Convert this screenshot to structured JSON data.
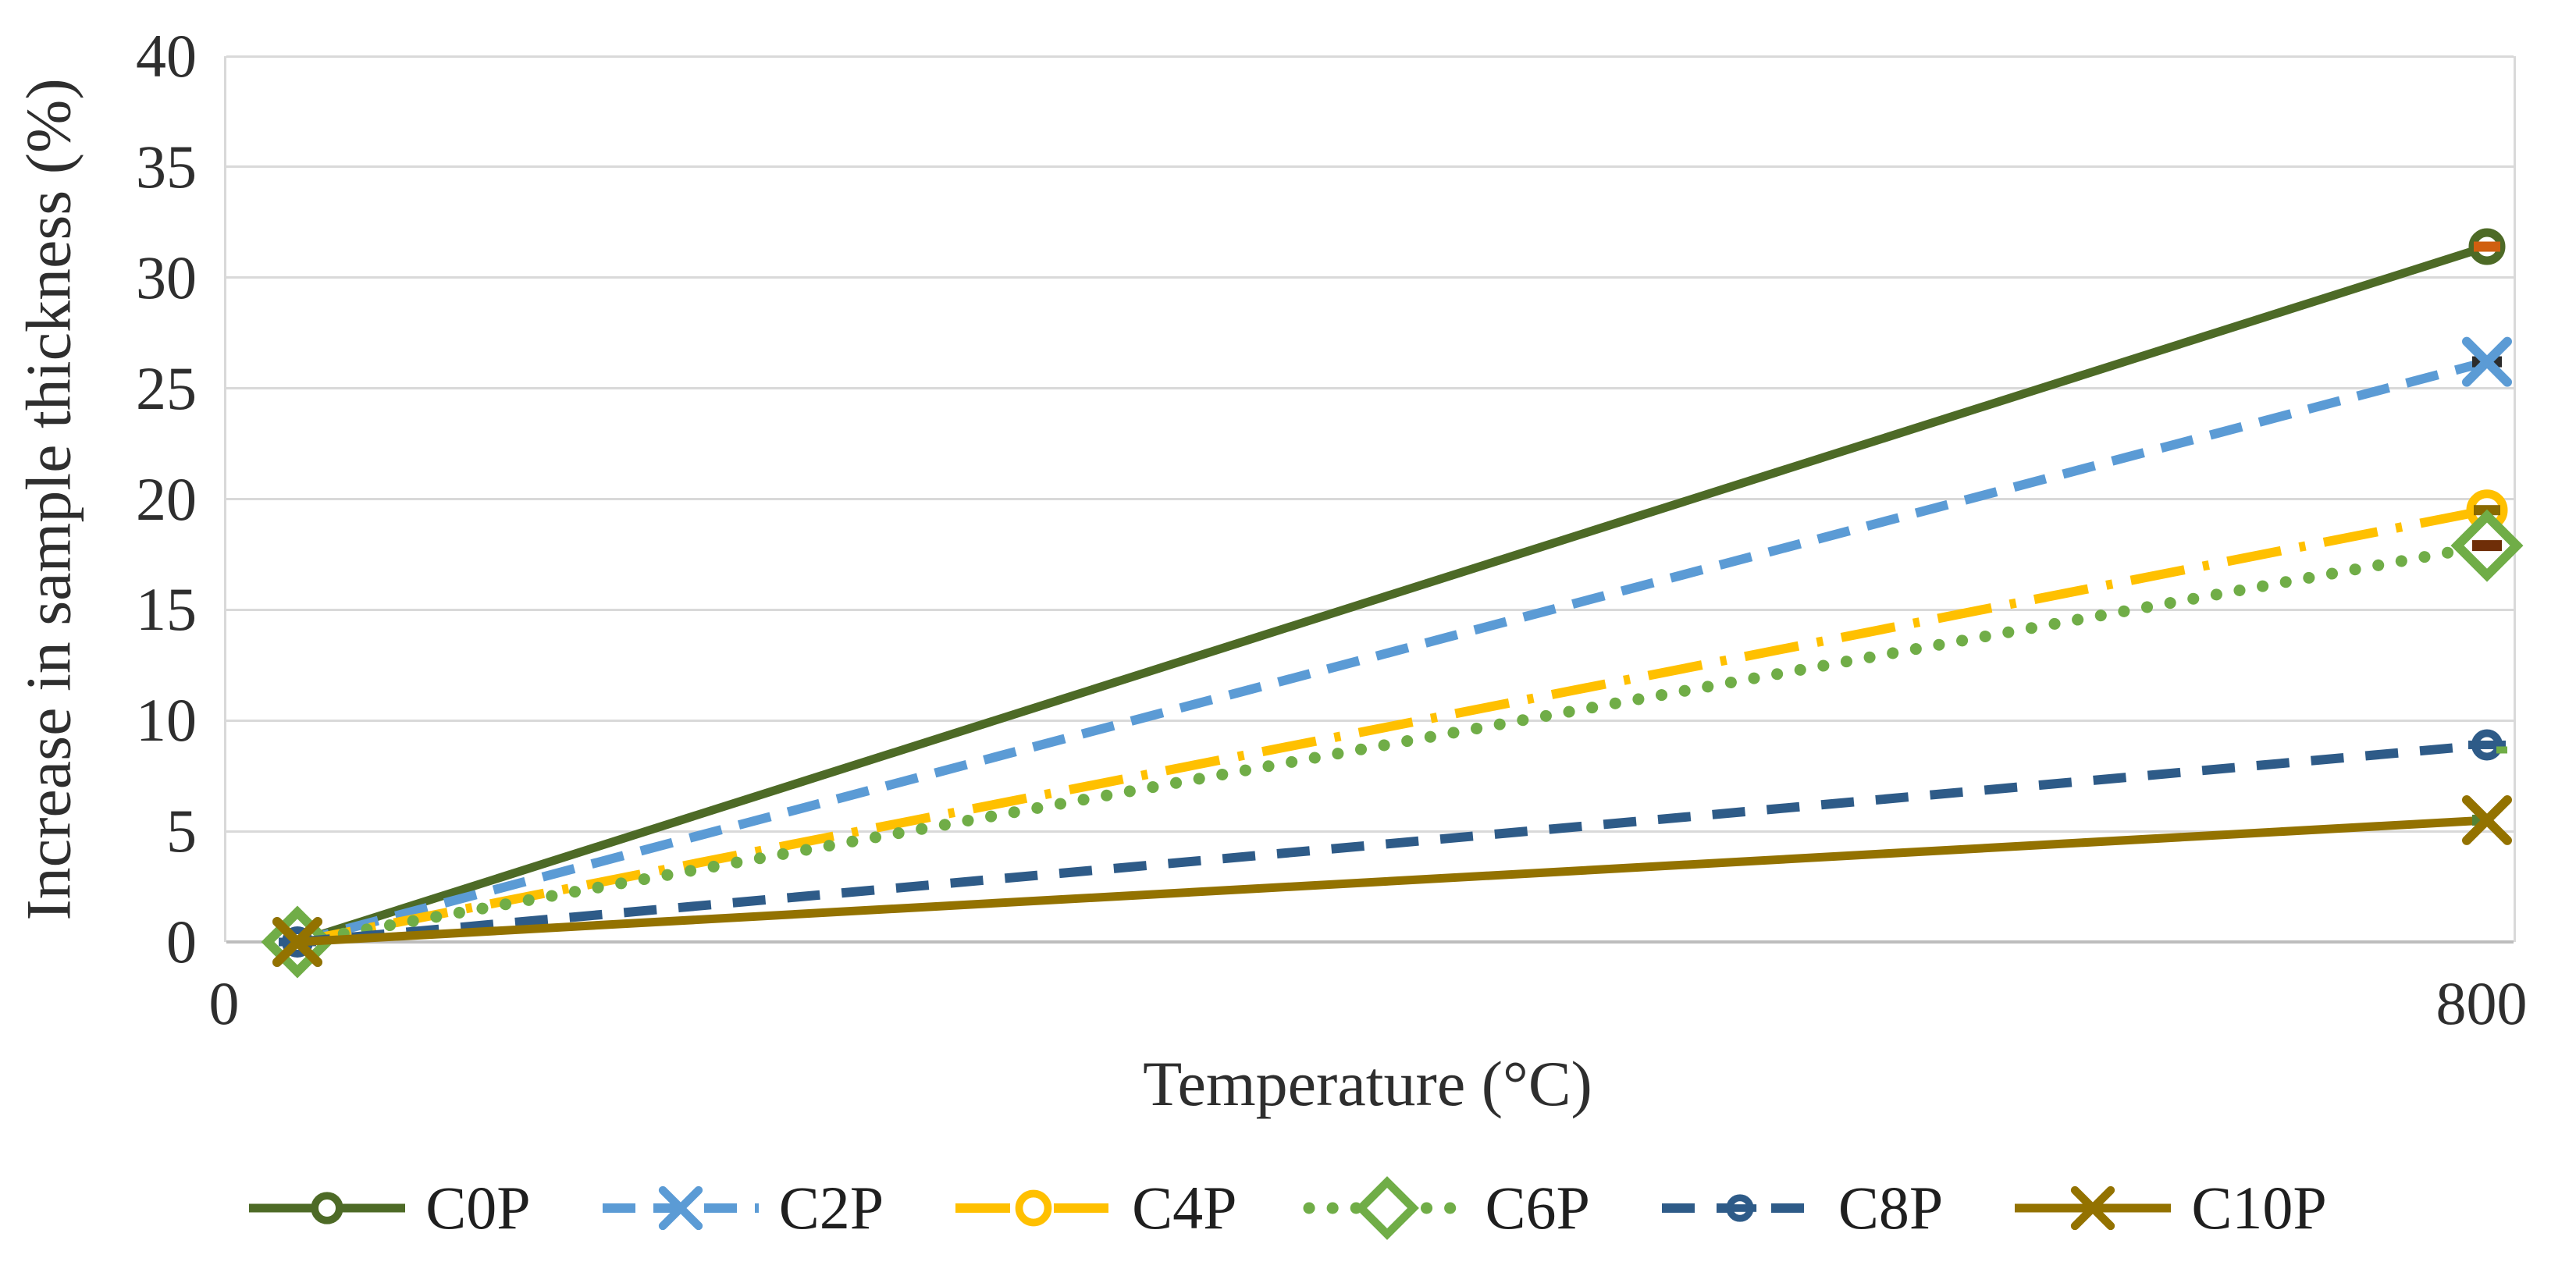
{
  "colors": {
    "gridline": "#d9d9d9",
    "axis_line": "#bdbdbd",
    "text": "#2e2e2e",
    "background": "#ffffff"
  },
  "chart_data": {
    "type": "line",
    "x": [
      0,
      800
    ],
    "x_tick_labels": [
      "0",
      "800"
    ],
    "xlabel": "Temperature (°C)",
    "ylabel": "Increase in sample thickness (%)",
    "ylim": [
      0,
      40
    ],
    "ytick_step": 5,
    "ytick_labels": [
      "0",
      "5",
      "10",
      "15",
      "20",
      "25",
      "30",
      "35",
      "40"
    ],
    "grid": true,
    "legend_position": "bottom",
    "series": [
      {
        "name": "C0P",
        "values": [
          0,
          31.4
        ],
        "color": "#4d6a26",
        "line_style": "solid",
        "marker": "circle-open",
        "marker_accent": "#d05f10"
      },
      {
        "name": "C2P",
        "values": [
          0,
          26.2
        ],
        "color": "#5b9bd5",
        "line_style": "dashed",
        "marker": "x",
        "marker_accent": "#2b2b2b"
      },
      {
        "name": "C4P",
        "values": [
          0,
          19.5
        ],
        "color": "#ffc000",
        "line_style": "dash-dot",
        "marker": "circle-open",
        "marker_accent": "#8a6a00"
      },
      {
        "name": "C6P",
        "values": [
          0,
          17.9
        ],
        "color": "#70ad47",
        "line_style": "dotted",
        "marker": "diamond-open",
        "marker_accent": "#6f2e08"
      },
      {
        "name": "C8P",
        "values": [
          0,
          8.9
        ],
        "color": "#2e5b88",
        "line_style": "dashed2",
        "marker": "circle-dash",
        "marker_accent": "#70ad47"
      },
      {
        "name": "C10P",
        "values": [
          0,
          5.5
        ],
        "color": "#937200",
        "line_style": "solid",
        "marker": "x",
        "marker_accent": "#548235"
      }
    ]
  }
}
